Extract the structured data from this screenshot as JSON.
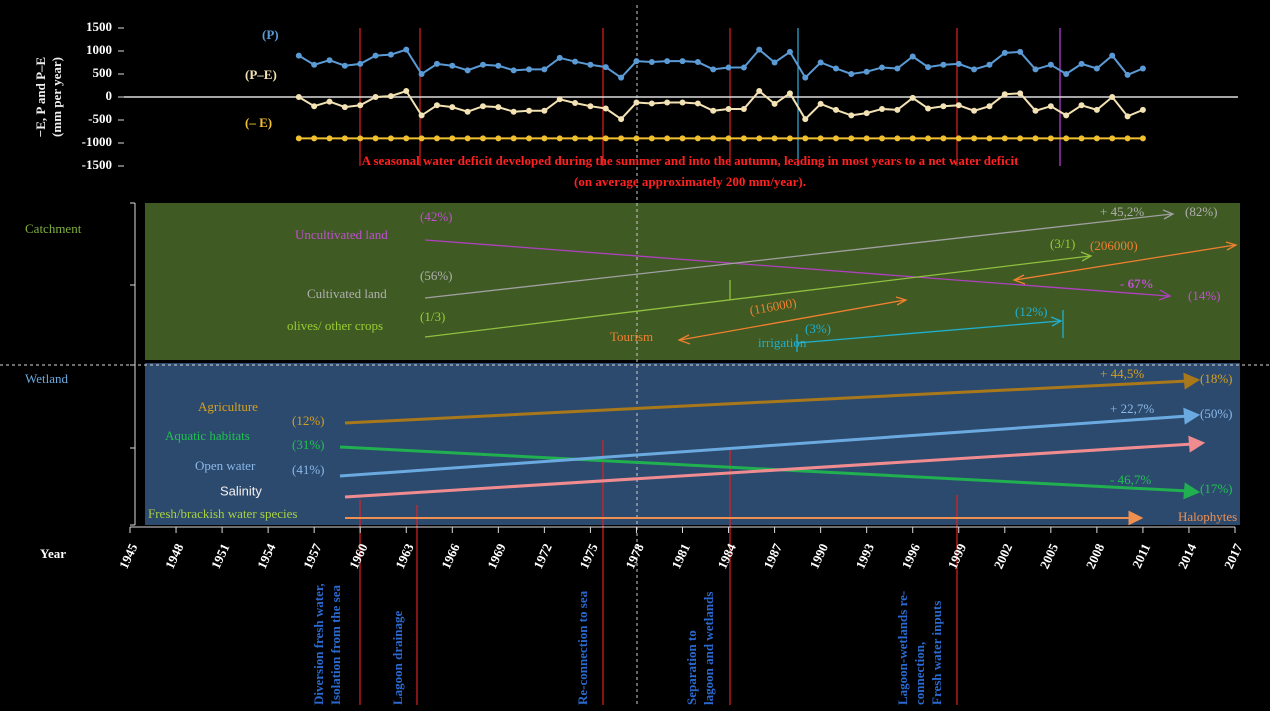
{
  "chart_data": {
    "type": "line",
    "ylabel": [
      "−E, P and P–E",
      "(mm per year)"
    ],
    "annotation": [
      "A seasonal water deficit developed during the summer and into the autumn, leading in most years to a net water deficit",
      "(on average approximately 200 mm/year)."
    ],
    "x_axis_label": "Year",
    "x": [
      1956,
      1957,
      1958,
      1959,
      1960,
      1961,
      1962,
      1963,
      1964,
      1965,
      1966,
      1967,
      1968,
      1969,
      1970,
      1971,
      1972,
      1973,
      1974,
      1975,
      1976,
      1977,
      1978,
      1979,
      1980,
      1981,
      1982,
      1983,
      1984,
      1985,
      1986,
      1987,
      1988,
      1989,
      1990,
      1991,
      1992,
      1993,
      1994,
      1995,
      1996,
      1997,
      1998,
      1999,
      2000,
      2001,
      2002,
      2003,
      2004,
      2005,
      2006,
      2007,
      2008,
      2009,
      2010,
      2011
    ],
    "series": [
      {
        "name": "(P)",
        "color": "#5b9bd5",
        "values": [
          900,
          700,
          800,
          680,
          720,
          900,
          920,
          1030,
          500,
          720,
          680,
          580,
          700,
          680,
          580,
          600,
          600,
          850,
          770,
          700,
          650,
          420,
          780,
          760,
          780,
          780,
          760,
          600,
          640,
          640,
          1030,
          750,
          980,
          420,
          750,
          620,
          500,
          550,
          640,
          620,
          880,
          650,
          700,
          720,
          600,
          700,
          960,
          980,
          600,
          700,
          500,
          720,
          620,
          900,
          480,
          620
        ]
      },
      {
        "name": "(P–E)",
        "color": "#f3e2b3",
        "values": [
          0,
          -200,
          -100,
          -220,
          -180,
          0,
          20,
          130,
          -400,
          -180,
          -220,
          -320,
          -200,
          -220,
          -320,
          -300,
          -300,
          -50,
          -130,
          -200,
          -250,
          -480,
          -120,
          -140,
          -120,
          -120,
          -140,
          -300,
          -260,
          -260,
          130,
          -150,
          80,
          -480,
          -150,
          -280,
          -400,
          -350,
          -260,
          -280,
          -20,
          -250,
          -200,
          -180,
          -300,
          -200,
          60,
          80,
          -300,
          -200,
          -400,
          -180,
          -280,
          0,
          -420,
          -280
        ]
      },
      {
        "name": "(– E)",
        "color": "#f0c030",
        "values": [
          -900,
          -900,
          -900,
          -900,
          -900,
          -900,
          -900,
          -900,
          -900,
          -900,
          -900,
          -900,
          -900,
          -900,
          -900,
          -900,
          -900,
          -900,
          -900,
          -900,
          -900,
          -900,
          -900,
          -900,
          -900,
          -900,
          -900,
          -900,
          -900,
          -900,
          -900,
          -900,
          -900,
          -900,
          -900,
          -900,
          -900,
          -900,
          -900,
          -900,
          -900,
          -900,
          -900,
          -900,
          -900,
          -900,
          -900,
          -900,
          -900,
          -900,
          -900,
          -900,
          -900,
          -900,
          -900,
          -900
        ]
      }
    ],
    "ylim": [
      -1500,
      1500
    ],
    "yticks": [
      -1500,
      -1000,
      -500,
      0,
      500,
      1000,
      1500
    ],
    "xlim": [
      1945,
      2017
    ],
    "xticks": [
      1945,
      1948,
      1951,
      1954,
      1957,
      1960,
      1963,
      1966,
      1969,
      1972,
      1975,
      1978,
      1981,
      1984,
      1987,
      1990,
      1993,
      1996,
      1999,
      2002,
      2005,
      2008,
      2011,
      2014,
      2017
    ]
  },
  "catchment": {
    "title": "Catchment",
    "items": [
      {
        "name": "Uncultivated land",
        "start": "(42%)",
        "end": "(14%)",
        "change": "- 67%"
      },
      {
        "name": "Cultivated land",
        "start": "(56%)",
        "end": "(82%)",
        "change": "+ 45,2%"
      },
      {
        "name": "olives/ other crops",
        "start": "(1/3)",
        "end": "(3/1)"
      },
      {
        "name": "Tourism",
        "start": "(116000)",
        "end": "(206000)"
      },
      {
        "name": "irrigation",
        "start": "(3%)",
        "end": "(12%)"
      }
    ]
  },
  "wetland": {
    "title": "Wetland",
    "items": [
      {
        "name": "Agriculture",
        "start": "(12%)",
        "end": "(18%)",
        "change": "+ 44,5%"
      },
      {
        "name": "Aquatic habitats",
        "start": "(31%)",
        "end": "(17%)",
        "change": "- 46,7%"
      },
      {
        "name": "Open water",
        "start": "(41%)",
        "end": "(50%)",
        "change": "+ 22,7%"
      },
      {
        "name": "Salinity"
      },
      {
        "name": "Fresh/brackish water species",
        "end": "Halophytes"
      }
    ]
  },
  "events": [
    [
      "Diversion fresh water,",
      "Isolation from the sea"
    ],
    [
      "Lagoon drainage"
    ],
    [
      "Re-connection to sea"
    ],
    [
      "Separation to",
      "lagoon and wetlands"
    ],
    [
      "Lagoon-wetlands re-",
      "connection,",
      "Fresh water inputs"
    ]
  ]
}
